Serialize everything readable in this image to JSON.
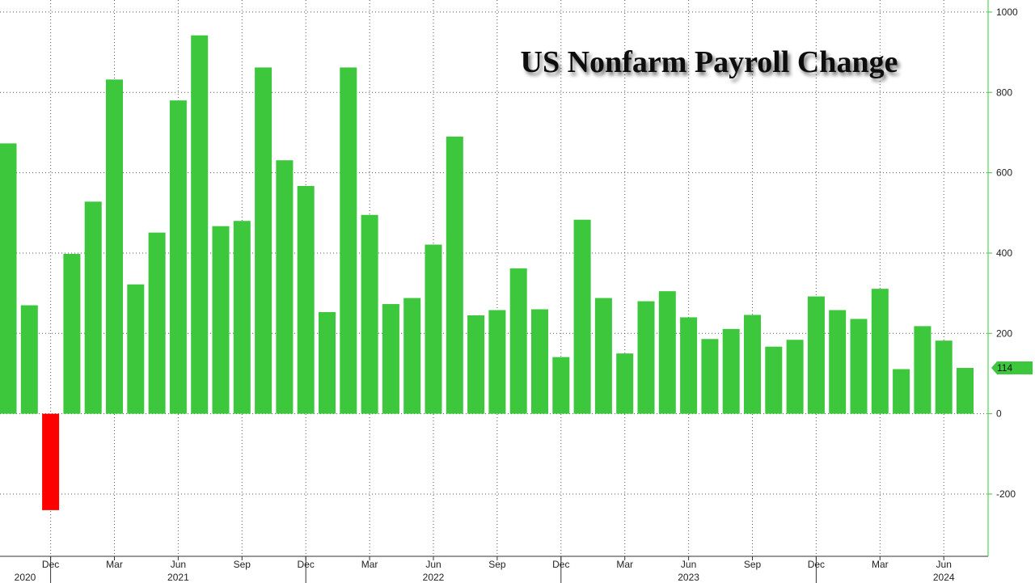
{
  "chart_data": {
    "type": "bar",
    "title": "US Nonfarm Payroll Change",
    "xlabel": "",
    "ylabel": "",
    "ylim": [
      -355,
      1030
    ],
    "y_ticks": [
      1000,
      800,
      600,
      400,
      200,
      0,
      -200
    ],
    "grid": true,
    "colors": {
      "positive": "#3cc73c",
      "negative": "#ff0000",
      "axis": "#33cc33",
      "callout": "#3cc73c"
    },
    "months": [
      "2020-10",
      "2020-11",
      "2020-12",
      "2021-01",
      "2021-02",
      "2021-03",
      "2021-04",
      "2021-05",
      "2021-06",
      "2021-07",
      "2021-08",
      "2021-09",
      "2021-10",
      "2021-11",
      "2021-12",
      "2022-01",
      "2022-02",
      "2022-03",
      "2022-04",
      "2022-05",
      "2022-06",
      "2022-07",
      "2022-08",
      "2022-09",
      "2022-10",
      "2022-11",
      "2022-12",
      "2023-01",
      "2023-02",
      "2023-03",
      "2023-04",
      "2023-05",
      "2023-06",
      "2023-07",
      "2023-08",
      "2023-09",
      "2023-10",
      "2023-11",
      "2023-12",
      "2024-01",
      "2024-02",
      "2024-03",
      "2024-04",
      "2024-05",
      "2024-06",
      "2024-07"
    ],
    "values": [
      673,
      270,
      -240,
      398,
      528,
      832,
      322,
      451,
      780,
      942,
      467,
      480,
      862,
      631,
      567,
      253,
      862,
      495,
      273,
      288,
      421,
      690,
      245,
      258,
      362,
      260,
      141,
      483,
      288,
      150,
      280,
      305,
      240,
      186,
      211,
      246,
      167,
      184,
      292,
      258,
      236,
      311,
      111,
      218,
      182,
      114
    ],
    "month_ticks": [
      {
        "label": "Dec",
        "month": "2020-12"
      },
      {
        "label": "Mar",
        "month": "2021-03"
      },
      {
        "label": "Jun",
        "month": "2021-06"
      },
      {
        "label": "Sep",
        "month": "2021-09"
      },
      {
        "label": "Dec",
        "month": "2021-12"
      },
      {
        "label": "Mar",
        "month": "2022-03"
      },
      {
        "label": "Jun",
        "month": "2022-06"
      },
      {
        "label": "Sep",
        "month": "2022-09"
      },
      {
        "label": "Dec",
        "month": "2022-12"
      },
      {
        "label": "Mar",
        "month": "2023-03"
      },
      {
        "label": "Jun",
        "month": "2023-06"
      },
      {
        "label": "Sep",
        "month": "2023-09"
      },
      {
        "label": "Dec",
        "month": "2023-12"
      },
      {
        "label": "Mar",
        "month": "2024-03"
      },
      {
        "label": "Jun",
        "month": "2024-06"
      }
    ],
    "year_labels": [
      {
        "label": "2020",
        "month": "2020-10"
      },
      {
        "label": "2021",
        "month": "2021-06"
      },
      {
        "label": "2022",
        "month": "2022-06"
      },
      {
        "label": "2023",
        "month": "2023-06"
      },
      {
        "label": "2024",
        "month": "2024-06"
      }
    ],
    "year_boundaries": [
      "2020-12",
      "2021-12",
      "2022-12",
      "2023-12"
    ],
    "last_value_label": "114"
  }
}
